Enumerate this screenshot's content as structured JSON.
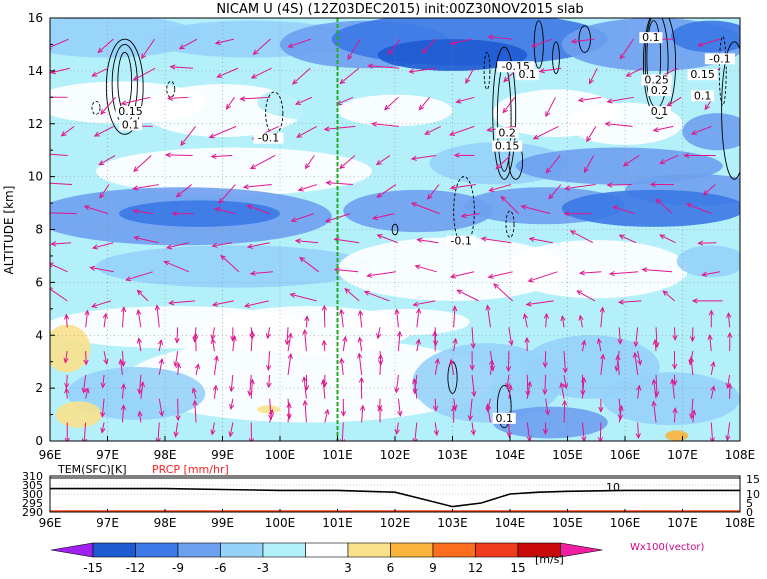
{
  "chart_data": [
    {
      "type": "heatmap",
      "title": "NICAM U (4S) (12Z03DEC2015) init:00Z30NOV2015 slab",
      "ylabel": "ALTITUDE [km]",
      "xlim": [
        96,
        108
      ],
      "ylim": [
        0,
        16
      ],
      "x_ticks": [
        "96E",
        "97E",
        "98E",
        "99E",
        "100E",
        "101E",
        "102E",
        "103E",
        "104E",
        "105E",
        "106E",
        "107E",
        "108E"
      ],
      "y_ticks": [
        "0",
        "2",
        "4",
        "6",
        "8",
        "10",
        "12",
        "14",
        "16"
      ],
      "grid": true,
      "marker_line_lon": 101,
      "contour_labels": [
        {
          "text": "0.1",
          "lon": 106.45,
          "alt": 15.2
        },
        {
          "text": "-0.15",
          "lon": 104.1,
          "alt": 14.1
        },
        {
          "text": "0.1",
          "lon": 104.3,
          "alt": 13.8
        },
        {
          "text": "0.15",
          "lon": 97.4,
          "alt": 12.4
        },
        {
          "text": "0.1",
          "lon": 97.4,
          "alt": 11.9
        },
        {
          "text": "-0.1",
          "lon": 99.8,
          "alt": 11.4
        },
        {
          "text": "0.2",
          "lon": 103.95,
          "alt": 11.6
        },
        {
          "text": "0.15",
          "lon": 103.95,
          "alt": 11.1
        },
        {
          "text": "0.25",
          "lon": 106.55,
          "alt": 13.6
        },
        {
          "text": "0.2",
          "lon": 106.6,
          "alt": 13.2
        },
        {
          "text": "0.1",
          "lon": 106.6,
          "alt": 12.4
        },
        {
          "text": "-0.1",
          "lon": 107.65,
          "alt": 14.4
        },
        {
          "text": "0.15",
          "lon": 107.35,
          "alt": 13.8
        },
        {
          "text": "0.1",
          "lon": 107.35,
          "alt": 13.0
        },
        {
          "text": "-0.1",
          "lon": 103.15,
          "alt": 7.5
        },
        {
          "text": "0.1",
          "lon": 103.9,
          "alt": 0.8
        }
      ]
    },
    {
      "type": "line",
      "series": [
        {
          "name": "TEM(SFC)[K]",
          "x": [
            96,
            97,
            98,
            99,
            100,
            101,
            102,
            102.5,
            103,
            103.5,
            104,
            104.5,
            105,
            106,
            107,
            108
          ],
          "values": [
            303,
            303,
            303,
            302.5,
            302,
            302,
            301,
            297,
            293,
            295,
            300,
            301,
            301.5,
            302,
            302,
            302
          ]
        },
        {
          "name": "PRCP [mm/hr]",
          "x": [
            96,
            108
          ],
          "values": [
            0,
            0
          ]
        }
      ],
      "xlim": [
        96,
        108
      ],
      "y_left_ticks": [
        "310",
        "305",
        "300",
        "295",
        "290"
      ],
      "y_right_ticks": [
        "15",
        "10",
        "5",
        "0"
      ],
      "x_ticks": [
        "96E",
        "97E",
        "98E",
        "99E",
        "100E",
        "101E",
        "102E",
        "103E",
        "104E",
        "105E",
        "106E",
        "107E",
        "108E"
      ],
      "annotation": "10"
    }
  ],
  "colorbar": {
    "labels": [
      "-15",
      "-12",
      "-9",
      "-6",
      "-3",
      "3",
      "6",
      "9",
      "12",
      "15"
    ],
    "unit": "[m/s]",
    "colors": [
      "#a020f0",
      "#1e5ad2",
      "#3c78e6",
      "#6ea0f0",
      "#96d2fa",
      "#b4f0fa",
      "#ffffff",
      "#fae18c",
      "#fab43c",
      "#fa6e1e",
      "#f03c1e",
      "#c80a0a",
      "#f01ea0"
    ]
  },
  "vector_label": "Wx100(vector)",
  "colors": {
    "vector": "#e0148c",
    "marker_line": "#22aa22",
    "prcp": "#ff4400",
    "prcp_label": "#ff2222",
    "vector_label": "#cc0088"
  }
}
